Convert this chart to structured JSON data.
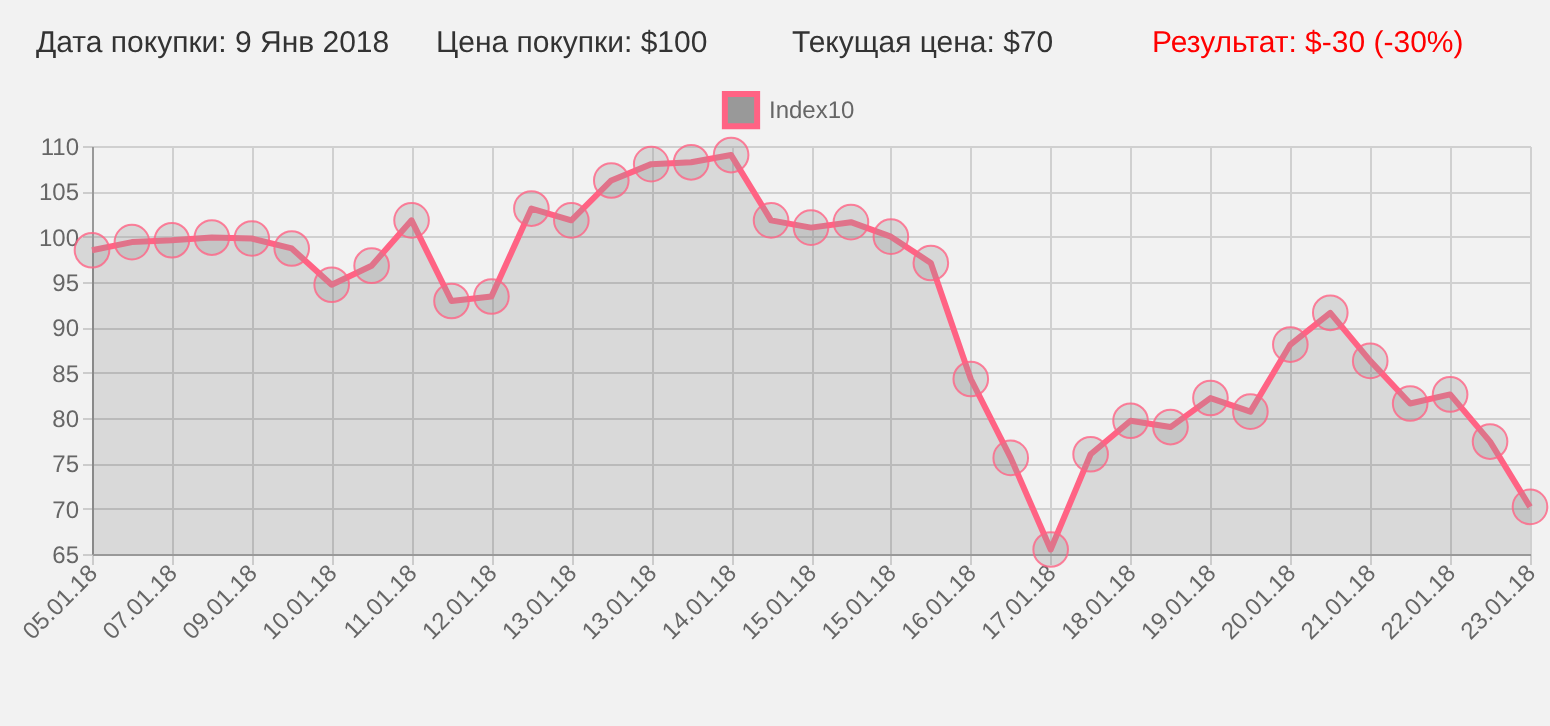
{
  "chart_data": {
    "type": "area",
    "annotations": [
      "Дата покупки: 9 Янв 2018",
      "Цена покупки: $100",
      "Текущая цена: $70",
      "Результат: $-30 (-30%)"
    ],
    "categories": [
      "05.01.18",
      null,
      "07.01.18",
      null,
      "09.01.18",
      null,
      "10.01.18",
      null,
      "11.01.18",
      null,
      "12.01.18",
      null,
      "13.01.18",
      null,
      "13.01.18",
      null,
      "14.01.18",
      null,
      "15.01.18",
      null,
      "15.01.18",
      null,
      "16.01.18",
      null,
      "17.01.18",
      null,
      "18.01.18",
      null,
      "19.01.18",
      null,
      "20.01.18",
      null,
      "21.01.18",
      null,
      "22.01.18",
      null,
      "23.01.18"
    ],
    "series": [
      {
        "name": "Index10",
        "color": "#ff6384",
        "values": [
          98.5,
          99.4,
          99.6,
          99.9,
          99.8,
          98.7,
          94.7,
          96.8,
          101.8,
          92.9,
          93.4,
          103.1,
          101.8,
          106.2,
          108.0,
          108.2,
          109.0,
          101.8,
          101.0,
          101.6,
          100.0,
          97.1,
          84.3,
          75.6,
          65.5,
          76.0,
          79.7,
          79.0,
          82.2,
          80.7,
          88.1,
          91.6,
          86.3,
          81.6,
          82.6,
          77.4,
          70.2
        ]
      }
    ],
    "ylim": [
      65,
      110
    ],
    "yticks": [
      65,
      70,
      75,
      80,
      85,
      90,
      95,
      100,
      105,
      110
    ],
    "grid": true,
    "legend": "top",
    "marker": "circle",
    "line_style": "solid"
  }
}
